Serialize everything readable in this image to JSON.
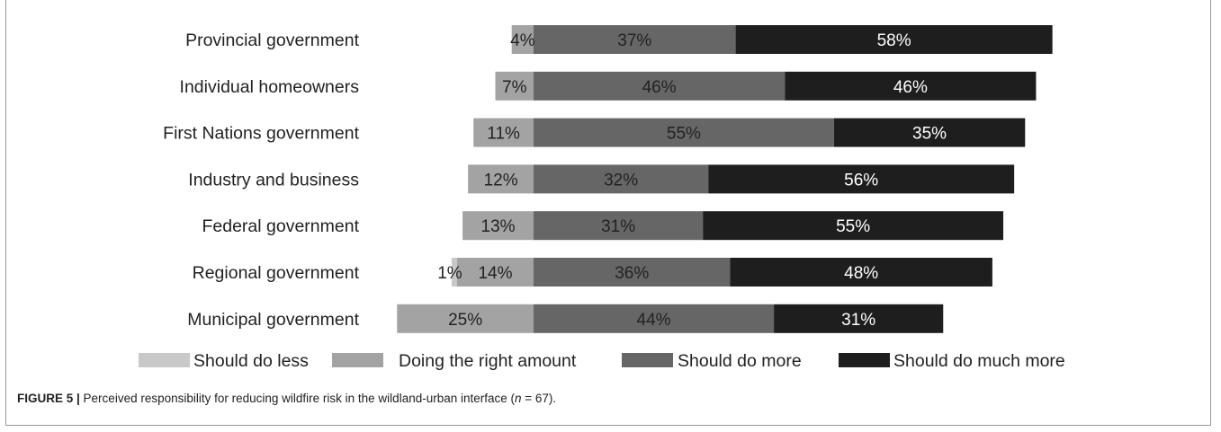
{
  "chart_data": {
    "type": "bar",
    "stacked": true,
    "orientation": "horizontal",
    "layout": "diverging",
    "categories": [
      "Provincial government",
      "Individual homeowners",
      "First Nations government",
      "Industry and business",
      "Federal government",
      "Regional government",
      "Municipal government"
    ],
    "series": [
      {
        "name": "Should do less",
        "color": "#c8c8c8",
        "values": [
          0,
          0,
          0,
          0,
          0,
          1,
          0
        ],
        "labels": [
          "",
          "",
          "",
          "",
          "",
          "1%",
          ""
        ]
      },
      {
        "name": "Doing the right amount",
        "color": "#a3a3a3",
        "values": [
          4,
          7,
          11,
          12,
          13,
          14,
          25
        ],
        "labels": [
          "4%",
          "7%",
          "11%",
          "12%",
          "13%",
          "14%",
          "25%"
        ]
      },
      {
        "name": "Should do more",
        "color": "#666666",
        "values": [
          37,
          46,
          55,
          32,
          31,
          36,
          44
        ],
        "labels": [
          "37%",
          "46%",
          "55%",
          "32%",
          "31%",
          "36%",
          "44%"
        ]
      },
      {
        "name": "Should do much more",
        "color": "#1e1e1e",
        "values": [
          58,
          46,
          35,
          56,
          55,
          48,
          31
        ],
        "labels": [
          "58%",
          "46%",
          "35%",
          "56%",
          "55%",
          "48%",
          "31%"
        ]
      }
    ],
    "legend_position": "bottom",
    "grid": false
  },
  "caption": {
    "label": "FIGURE 5 |",
    "text_before_n": " Perceived responsibility for reducing wildfire risk in the wildland-urban interface (",
    "n_symbol": "n",
    "text_after_n": " = 67)."
  }
}
